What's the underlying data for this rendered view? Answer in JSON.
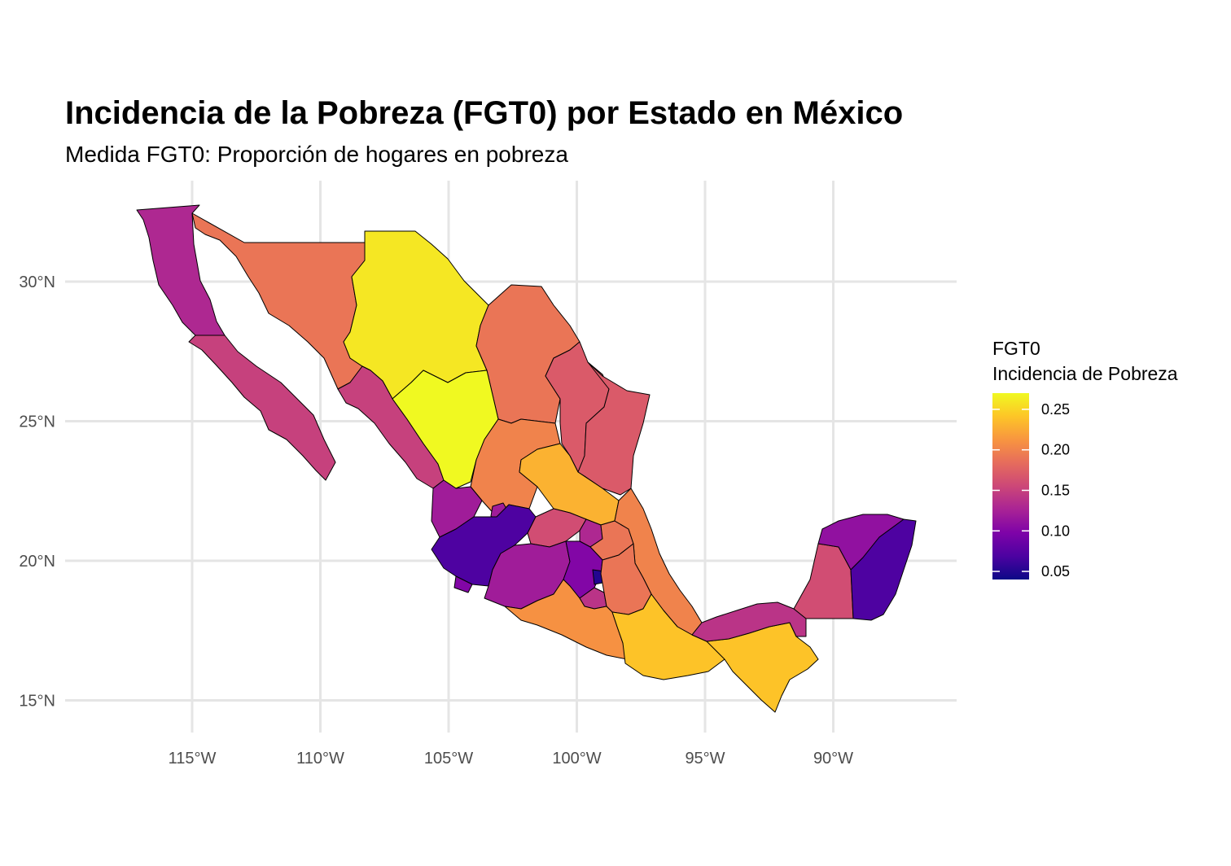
{
  "title": "Incidencia de la Pobreza (FGT0) por Estado en México",
  "subtitle": "Medida FGT0: Proporción de hogares en pobreza",
  "axes": {
    "x_ticks": [
      {
        "lon": -115,
        "label": "115°W"
      },
      {
        "lon": -110,
        "label": "110°W"
      },
      {
        "lon": -105,
        "label": "105°W"
      },
      {
        "lon": -100,
        "label": "100°W"
      },
      {
        "lon": -95,
        "label": "95°W"
      },
      {
        "lon": -90,
        "label": "90°W"
      }
    ],
    "y_ticks": [
      {
        "lat": 30,
        "label": "30°N"
      },
      {
        "lat": 25,
        "label": "25°N"
      },
      {
        "lat": 20,
        "label": "20°N"
      },
      {
        "lat": 15,
        "label": "15°N"
      }
    ]
  },
  "legend": {
    "title_line1": "FGT0",
    "title_line2": "Incidencia de Pobreza",
    "ticks": [
      "0.25",
      "0.20",
      "0.15",
      "0.10",
      "0.05"
    ],
    "palette": "plasma",
    "range": [
      0.04,
      0.27
    ]
  },
  "chart_data": {
    "type": "choropleth",
    "variable": "FGT0",
    "regions": [
      {
        "id": "baja-california",
        "value": 0.13
      },
      {
        "id": "baja-california-sur",
        "value": 0.15
      },
      {
        "id": "sonora",
        "value": 0.19
      },
      {
        "id": "chihuahua",
        "value": 0.26
      },
      {
        "id": "coahuila",
        "value": 0.19
      },
      {
        "id": "nuevo-leon",
        "value": 0.17
      },
      {
        "id": "tamaulipas",
        "value": 0.17
      },
      {
        "id": "sinaloa",
        "value": 0.15
      },
      {
        "id": "durango",
        "value": 0.27
      },
      {
        "id": "zacatecas",
        "value": 0.2
      },
      {
        "id": "nayarit",
        "value": 0.12
      },
      {
        "id": "aguascalientes",
        "value": 0.12
      },
      {
        "id": "san-luis-potosi",
        "value": 0.23
      },
      {
        "id": "jalisco",
        "value": 0.07
      },
      {
        "id": "guanajuato",
        "value": 0.16
      },
      {
        "id": "queretaro",
        "value": 0.13
      },
      {
        "id": "hidalgo",
        "value": 0.19
      },
      {
        "id": "veracruz",
        "value": 0.2
      },
      {
        "id": "colima",
        "value": 0.1
      },
      {
        "id": "michoacan",
        "value": 0.12
      },
      {
        "id": "mexico",
        "value": 0.1
      },
      {
        "id": "ciudad-de-mexico",
        "value": 0.05
      },
      {
        "id": "morelos",
        "value": 0.14
      },
      {
        "id": "tlaxcala",
        "value": 0.16
      },
      {
        "id": "puebla",
        "value": 0.19
      },
      {
        "id": "guerrero",
        "value": 0.21
      },
      {
        "id": "oaxaca",
        "value": 0.24
      },
      {
        "id": "chiapas",
        "value": 0.24
      },
      {
        "id": "tabasco",
        "value": 0.14
      },
      {
        "id": "campeche",
        "value": 0.16
      },
      {
        "id": "yucatan",
        "value": 0.11
      },
      {
        "id": "quintana-roo",
        "value": 0.07
      }
    ]
  }
}
